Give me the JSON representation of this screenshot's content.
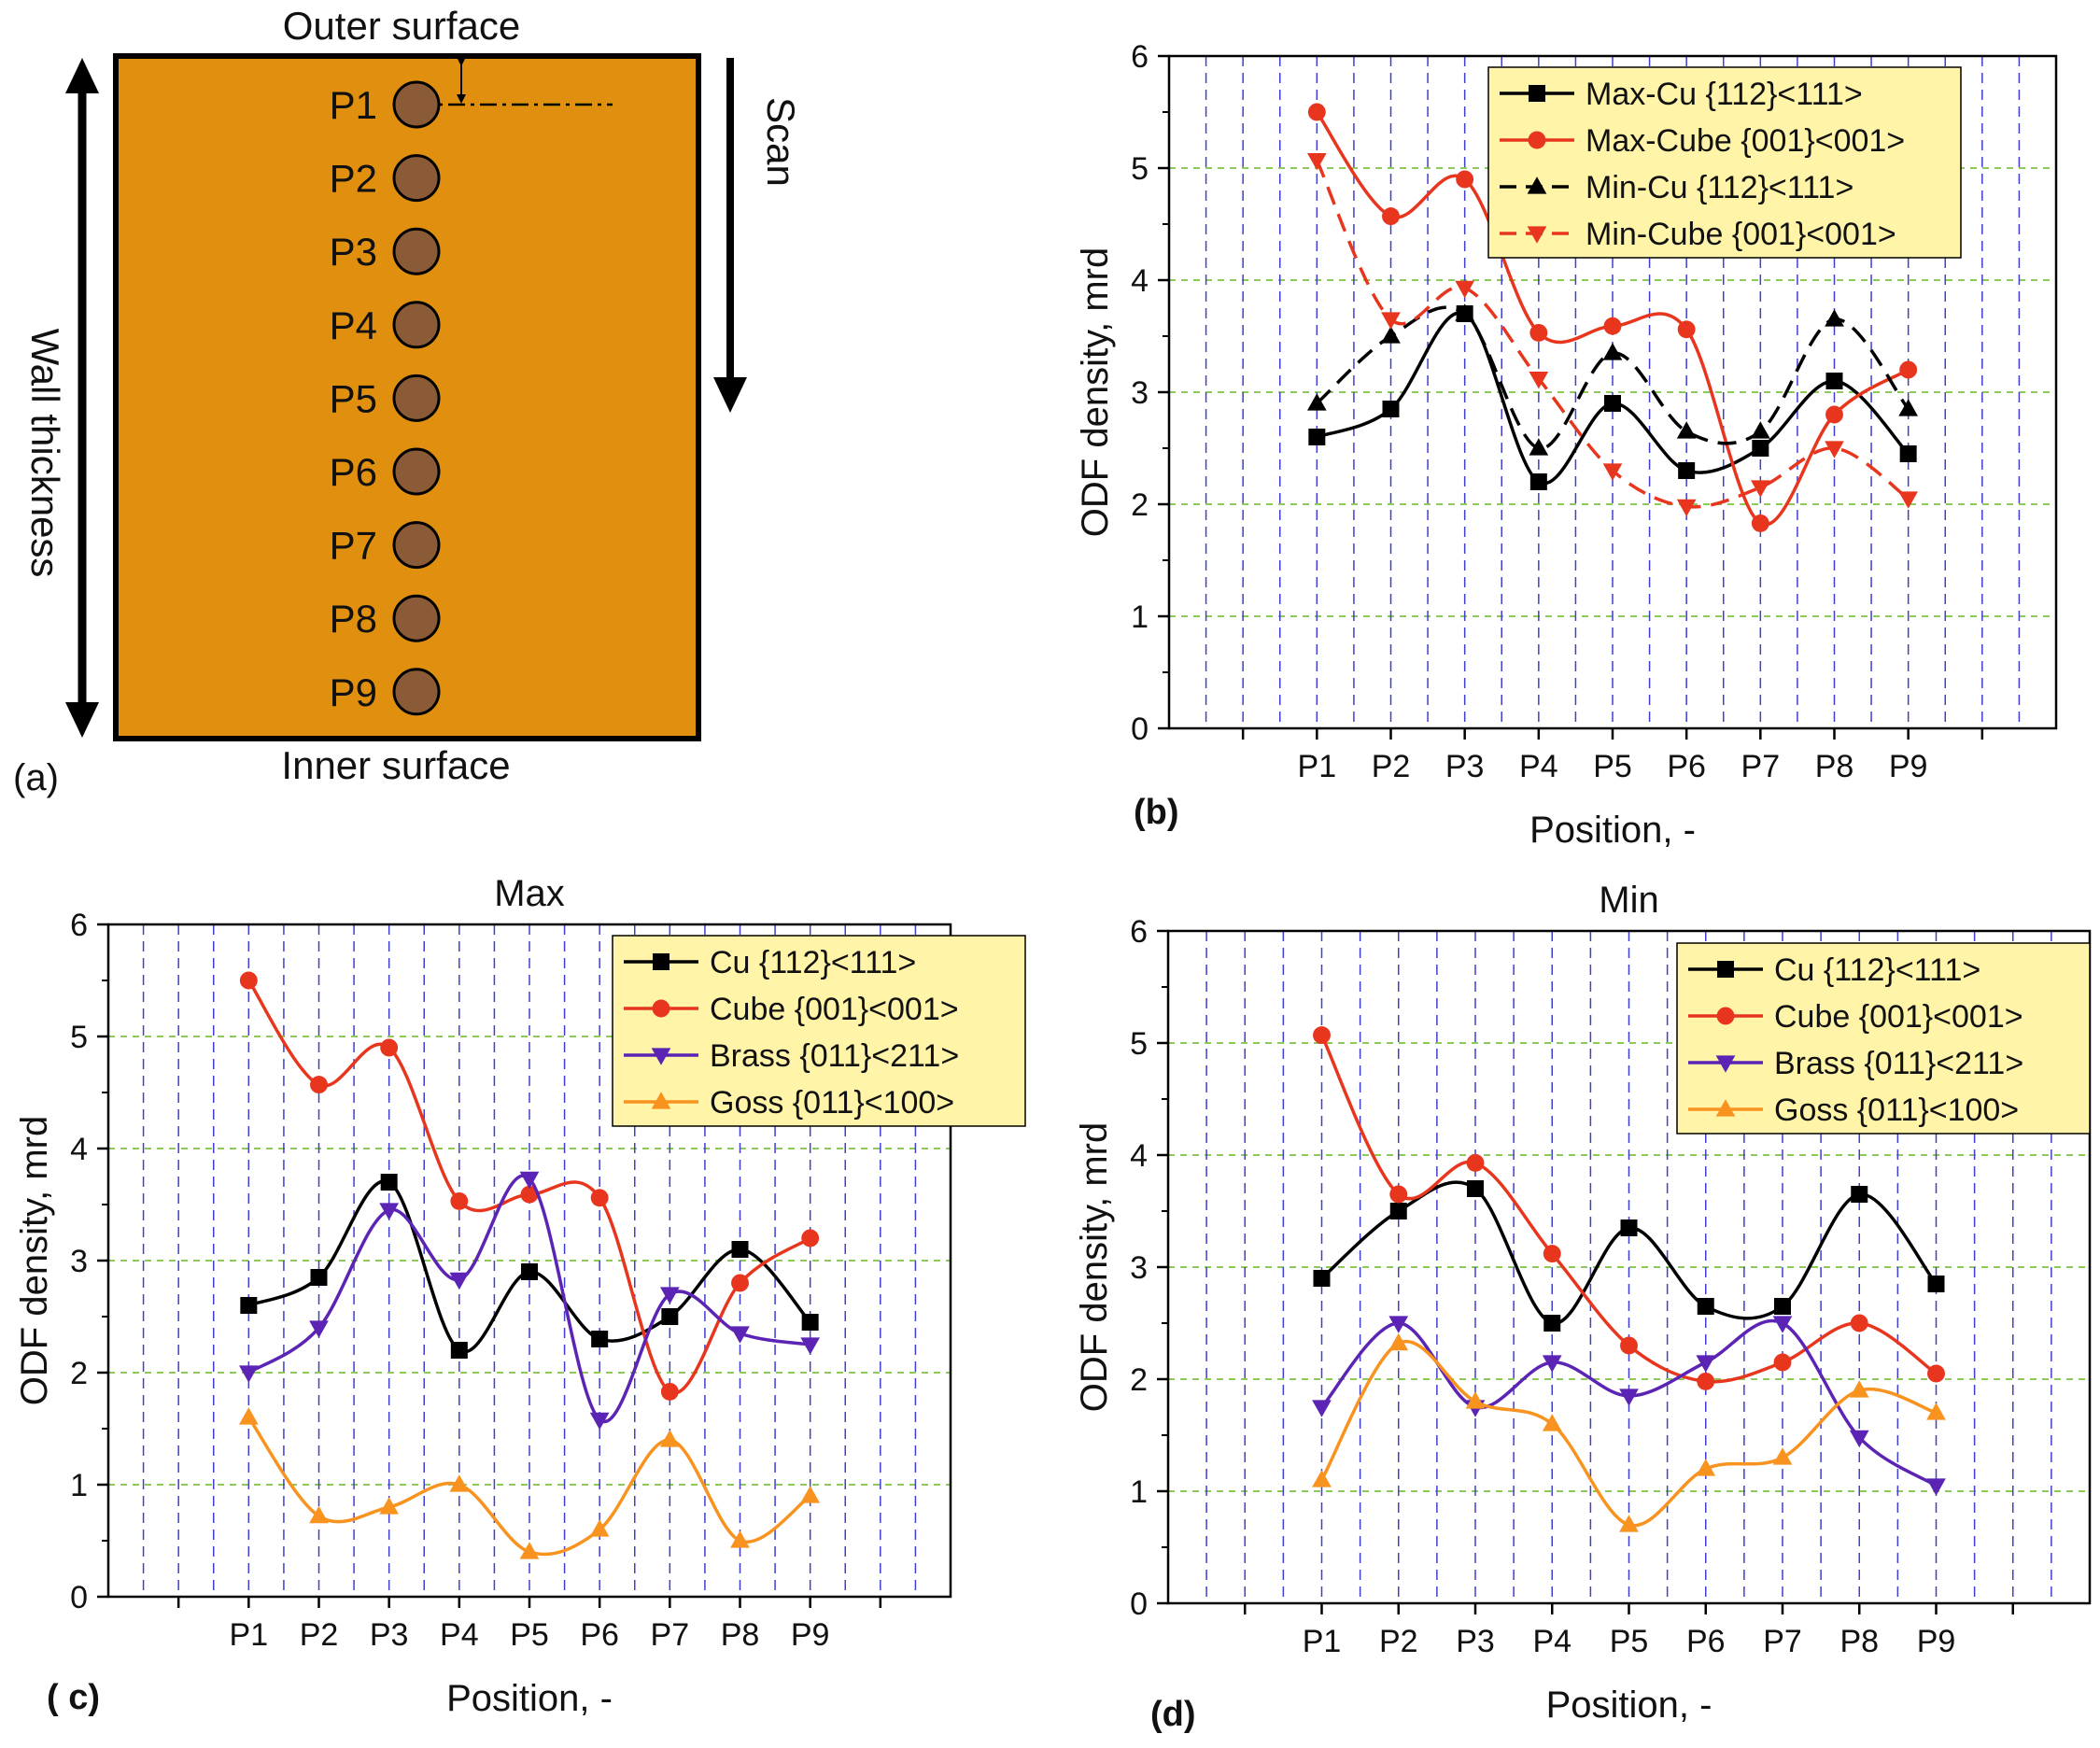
{
  "schematic": {
    "outer_label": "Outer surface",
    "inner_label": "Inner surface",
    "scan_label": "Scan",
    "wall_label": "Wall thickness",
    "panel_label": "(a)",
    "points": [
      "P1",
      "P2",
      "P3",
      "P4",
      "P5",
      "P6",
      "P7",
      "P8",
      "P9"
    ],
    "plate_color": "#E0900E",
    "point_color": "#8B5A36"
  },
  "chart_data": [
    {
      "id": "b",
      "type": "line",
      "panel_label": "(b)",
      "title": "",
      "xlabel": "Position, -",
      "ylabel": "ODF density, mrd",
      "ylim": [
        0,
        6
      ],
      "yticks": [
        "0",
        "1",
        "2",
        "3",
        "4",
        "5",
        "6"
      ],
      "categories": [
        "P1",
        "P2",
        "P3",
        "P4",
        "P5",
        "P6",
        "P7",
        "P8",
        "P9"
      ],
      "series": [
        {
          "name": "Max-Cu {112}<111>",
          "color": "#000000",
          "marker": "square",
          "dash": "solid",
          "values": [
            2.6,
            2.85,
            3.7,
            2.2,
            2.9,
            2.3,
            2.5,
            3.1,
            2.45
          ]
        },
        {
          "name": "Max-Cube {001}<001>",
          "color": "#E8361E",
          "marker": "circle",
          "dash": "solid",
          "values": [
            5.5,
            4.57,
            4.9,
            3.53,
            3.59,
            3.56,
            1.83,
            2.8,
            3.2
          ]
        },
        {
          "name": "Min-Cu {112}<111>",
          "color": "#000000",
          "marker": "triangle-up",
          "dash": "dashed",
          "values": [
            2.9,
            3.5,
            3.7,
            2.5,
            3.35,
            2.65,
            2.65,
            3.65,
            2.85
          ]
        },
        {
          "name": "Min-Cube {001}<001>",
          "color": "#E8361E",
          "marker": "triangle-down",
          "dash": "dashed",
          "values": [
            5.07,
            3.65,
            3.93,
            3.12,
            2.3,
            1.98,
            2.15,
            2.5,
            2.05
          ]
        }
      ]
    },
    {
      "id": "c",
      "type": "line",
      "panel_label": "( c)",
      "title": "Max",
      "xlabel": "Position, -",
      "ylabel": "ODF density, mrd",
      "ylim": [
        0,
        6
      ],
      "yticks": [
        "0",
        "1",
        "2",
        "3",
        "4",
        "5",
        "6"
      ],
      "categories": [
        "P1",
        "P2",
        "P3",
        "P4",
        "P5",
        "P6",
        "P7",
        "P8",
        "P9"
      ],
      "series": [
        {
          "name": "Cu {112}<111>",
          "color": "#000000",
          "marker": "square",
          "dash": "solid",
          "values": [
            2.6,
            2.85,
            3.7,
            2.2,
            2.9,
            2.3,
            2.5,
            3.1,
            2.45
          ]
        },
        {
          "name": "Cube {001}<001>",
          "color": "#E8361E",
          "marker": "circle",
          "dash": "solid",
          "values": [
            5.5,
            4.57,
            4.9,
            3.53,
            3.59,
            3.56,
            1.83,
            2.8,
            3.2
          ]
        },
        {
          "name": "Brass {011}<211>",
          "color": "#5B24B4",
          "marker": "triangle-down",
          "dash": "solid",
          "values": [
            2.0,
            2.4,
            3.45,
            2.83,
            3.73,
            1.58,
            2.7,
            2.35,
            2.25
          ]
        },
        {
          "name": "Goss {011}<100>",
          "color": "#F7931E",
          "marker": "triangle-up",
          "dash": "solid",
          "values": [
            1.6,
            0.72,
            0.8,
            1.0,
            0.4,
            0.6,
            1.4,
            0.5,
            0.9
          ]
        }
      ]
    },
    {
      "id": "d",
      "type": "line",
      "panel_label": "(d)",
      "title": "Min",
      "xlabel": "Position, -",
      "ylabel": "ODF density, mrd",
      "ylim": [
        0,
        6
      ],
      "yticks": [
        "0",
        "1",
        "2",
        "3",
        "4",
        "5",
        "6"
      ],
      "categories": [
        "P1",
        "P2",
        "P3",
        "P4",
        "P5",
        "P6",
        "P7",
        "P8",
        "P9"
      ],
      "series": [
        {
          "name": "Cu {112}<111>",
          "color": "#000000",
          "marker": "square",
          "dash": "solid",
          "values": [
            2.9,
            3.5,
            3.7,
            2.5,
            3.35,
            2.65,
            2.65,
            3.65,
            2.85
          ]
        },
        {
          "name": "Cube {001}<001>",
          "color": "#E8361E",
          "marker": "circle",
          "dash": "solid",
          "values": [
            5.07,
            3.65,
            3.93,
            3.12,
            2.3,
            1.98,
            2.15,
            2.5,
            2.05
          ]
        },
        {
          "name": "Brass {011}<211>",
          "color": "#5B24B4",
          "marker": "triangle-down",
          "dash": "solid",
          "values": [
            1.75,
            2.5,
            1.75,
            2.15,
            1.85,
            2.15,
            2.5,
            1.48,
            1.05
          ]
        },
        {
          "name": "Goss {011}<100>",
          "color": "#F7931E",
          "marker": "triangle-up",
          "dash": "solid",
          "values": [
            1.1,
            2.32,
            1.8,
            1.6,
            0.7,
            1.2,
            1.3,
            1.9,
            1.7
          ]
        }
      ]
    }
  ]
}
